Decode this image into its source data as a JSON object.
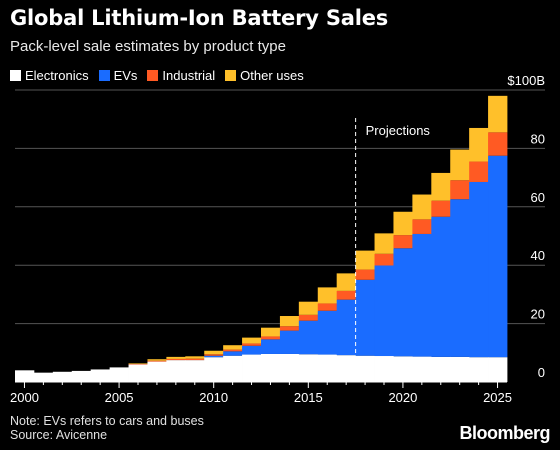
{
  "header": {
    "title": "Global Lithium-Ion Battery Sales",
    "subtitle": "Pack-level sale estimates by product type"
  },
  "legend": [
    {
      "label": "Electronics",
      "color": "#ffffff"
    },
    {
      "label": "EVs",
      "color": "#1a6cff"
    },
    {
      "label": "Industrial",
      "color": "#ff5a23"
    },
    {
      "label": "Other uses",
      "color": "#ffc02a"
    }
  ],
  "annotation": {
    "label": "Projections"
  },
  "footer": {
    "note": "Note: EVs refers to cars and buses",
    "source": "Source: Avicenne",
    "brand": "Bloomberg"
  },
  "chart_data": {
    "type": "bar",
    "stacked": true,
    "x": [
      2000,
      2001,
      2002,
      2003,
      2004,
      2005,
      2006,
      2007,
      2008,
      2009,
      2010,
      2011,
      2012,
      2013,
      2014,
      2015,
      2016,
      2017,
      2018,
      2019,
      2020,
      2021,
      2022,
      2023,
      2024,
      2025
    ],
    "series": [
      {
        "name": "Electronics",
        "color": "#ffffff",
        "values": [
          4,
          3.2,
          3.5,
          3.8,
          4.3,
          5,
          6,
          7,
          7.5,
          7.5,
          8.5,
          9,
          9.4,
          9.6,
          9.6,
          9.5,
          9.4,
          9.2,
          9,
          8.9,
          8.8,
          8.7,
          8.6,
          8.6,
          8.5,
          8.5
        ]
      },
      {
        "name": "EVs",
        "color": "#1a6cff",
        "values": [
          0,
          0,
          0,
          0,
          0,
          0,
          0,
          0,
          0,
          0,
          0.5,
          1.5,
          3,
          5,
          8,
          11.5,
          15,
          19,
          26,
          31,
          37,
          42,
          48,
          54,
          60,
          69
        ]
      },
      {
        "name": "Industrial",
        "color": "#ff5a23",
        "values": [
          0,
          0,
          0,
          0,
          0,
          0,
          0.2,
          0.3,
          0.4,
          0.5,
          0.5,
          0.6,
          0.8,
          1,
          1.5,
          2,
          2.5,
          3,
          3.5,
          4,
          4.5,
          5,
          5.5,
          6.5,
          7,
          8
        ]
      },
      {
        "name": "Other uses",
        "color": "#ffc02a",
        "values": [
          0,
          0,
          0,
          0,
          0,
          0,
          0.2,
          0.5,
          0.7,
          0.8,
          1.2,
          1.5,
          2,
          3,
          3.5,
          4.5,
          5.5,
          6,
          6.5,
          7,
          8,
          8.5,
          9.5,
          10.5,
          11.5,
          12.5
        ]
      }
    ],
    "ylim": [
      0,
      100
    ],
    "yticks": [
      0,
      20,
      40,
      60,
      80,
      100
    ],
    "ytick_labels": [
      "0",
      "20",
      "40",
      "60",
      "80",
      "$100B"
    ],
    "xticks": [
      2000,
      2005,
      2010,
      2015,
      2020,
      2025
    ],
    "projection_start": 2017.5,
    "grid": true,
    "legend_position": "top-left"
  }
}
